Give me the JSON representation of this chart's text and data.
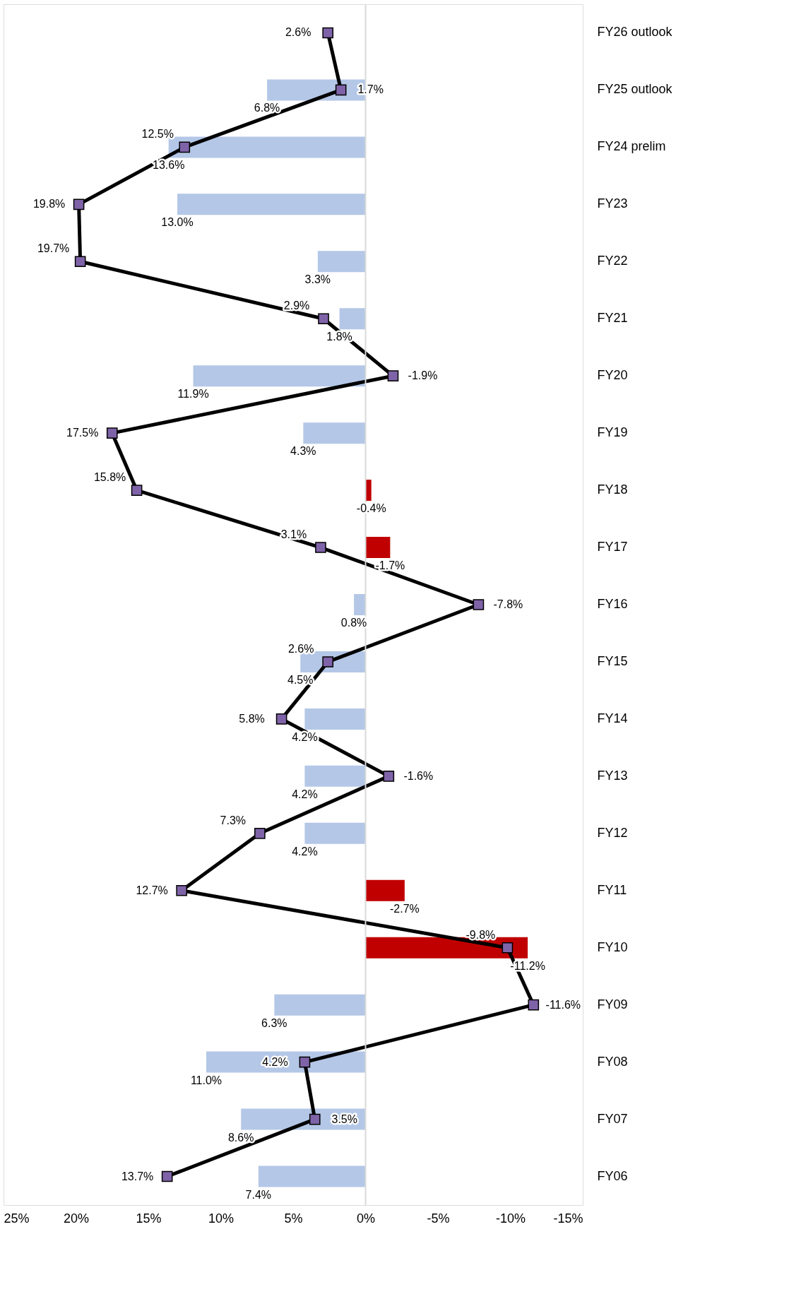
{
  "chart_data": {
    "type": "bar",
    "orientation": "horizontal",
    "categories": [
      "FY26 outlook",
      "FY25 outlook",
      "FY24 prelim",
      "FY23",
      "FY22",
      "FY21",
      "FY20",
      "FY19",
      "FY18",
      "FY17",
      "FY16",
      "FY15",
      "FY14",
      "FY13",
      "FY12",
      "FY11",
      "FY10",
      "FY09",
      "FY08",
      "FY07",
      "FY06"
    ],
    "series": [
      {
        "values": [
          null,
          6.8,
          13.6,
          13.0,
          3.3,
          1.8,
          11.9,
          4.3,
          -0.4,
          -1.7,
          0.8,
          4.5,
          4.2,
          4.2,
          4.2,
          -2.7,
          -11.2,
          6.3,
          11.0,
          8.6,
          7.4
        ],
        "colors": [
          "#b4c7e7",
          "#b4c7e7",
          "#b4c7e7",
          "#b4c7e7",
          "#b4c7e7",
          "#b4c7e7",
          "#b4c7e7",
          "#b4c7e7",
          "#c00000",
          "#c00000",
          "#b4c7e7",
          "#b4c7e7",
          "#b4c7e7",
          "#b4c7e7",
          "#b4c7e7",
          "#c00000",
          "#c00000",
          "#b4c7e7",
          "#b4c7e7",
          "#b4c7e7",
          "#b4c7e7"
        ],
        "value_labels": [
          null,
          "6.8%",
          "13.6%",
          "13.0%",
          "3.3%",
          "1.8%",
          "11.9%",
          "4.3%",
          "-0.4%",
          "-1.7%",
          "0.8%",
          "4.5%",
          "4.2%",
          "4.2%",
          "4.2%",
          "-2.7%",
          "-11.2%",
          "6.3%",
          "11.0%",
          "8.6%",
          "7.4%"
        ]
      },
      {
        "type": "line",
        "color": "#000000",
        "marker": "square",
        "colors": [
          "#7f63a8",
          "#7f63a8",
          "#7f63a8",
          "#7f63a8",
          "#7f63a8",
          "#7f63a8",
          "#7f63a8",
          "#7f63a8",
          "#7f63a8",
          "#7f63a8",
          "#7f63a8",
          "#7f63a8",
          "#7f63a8",
          "#7f63a8",
          "#7f63a8",
          "#7f63a8",
          "#7f63a8",
          "#7f63a8",
          "#7f63a8",
          "#7f63a8",
          "#7f63a8"
        ],
        "values": [
          2.6,
          1.7,
          12.5,
          19.8,
          19.7,
          2.9,
          -1.9,
          17.5,
          15.8,
          3.1,
          -7.8,
          2.6,
          5.8,
          -1.6,
          7.3,
          12.7,
          -9.8,
          -11.6,
          4.2,
          3.5,
          13.7
        ],
        "value_labels": [
          "2.6%",
          "1.7%",
          "12.5%",
          "19.8%",
          "19.7%",
          "2.9%",
          "-1.9%",
          "17.5%",
          "15.8%",
          "3.1%",
          "-7.8%",
          "2.6%",
          "5.8%",
          "-1.6%",
          "7.3%",
          "12.7%",
          "-9.8%",
          "-11.6%",
          "4.2%",
          "3.5%",
          "13.7%"
        ]
      }
    ],
    "xlim": [
      25,
      -15
    ],
    "xticks": [
      {
        "value": 25,
        "label": "25%"
      },
      {
        "value": 20,
        "label": "20%"
      },
      {
        "value": 15,
        "label": "15%"
      },
      {
        "value": 10,
        "label": "10%"
      },
      {
        "value": 5,
        "label": "5%"
      },
      {
        "value": 0,
        "label": "0%"
      },
      {
        "value": -5,
        "label": "-5%"
      },
      {
        "value": -10,
        "label": "-10%"
      },
      {
        "value": -15,
        "label": "-15%"
      }
    ],
    "ref_lines": [
      {
        "axis": "x",
        "value": 0,
        "color": "#d9d9d9"
      }
    ],
    "grid": false
  }
}
